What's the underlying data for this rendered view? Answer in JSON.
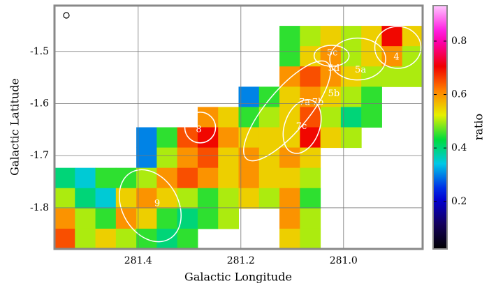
{
  "chart_data": {
    "type": "heatmap",
    "x_label": "Galactic Longitude",
    "y_label": "Galactic Latitude",
    "colorbar_label": "ratio",
    "xlim": [
      281.563,
      280.846
    ],
    "ylim": [
      -1.879,
      -1.412
    ],
    "xticks": [
      281.4,
      281.2,
      {
        "value": 281.0,
        "label": "281.0"
      }
    ],
    "yticks": [
      -1.5,
      -1.6,
      -1.7,
      -1.8
    ],
    "zlim": [
      0.022,
      0.933
    ],
    "zticks": [
      0.2,
      0.4,
      0.6,
      0.8
    ],
    "grid": true,
    "z": [
      [
        null,
        null,
        null,
        null,
        null,
        null,
        null,
        null,
        null,
        null,
        null,
        null,
        null,
        null,
        null,
        null,
        null,
        null
      ],
      [
        null,
        null,
        null,
        null,
        null,
        null,
        null,
        null,
        null,
        null,
        null,
        0.45,
        0.5,
        0.55,
        0.5,
        0.55,
        0.7,
        0.55
      ],
      [
        null,
        null,
        null,
        null,
        null,
        null,
        null,
        null,
        null,
        null,
        null,
        0.45,
        0.55,
        0.6,
        0.5,
        0.55,
        0.6,
        0.5
      ],
      [
        null,
        null,
        null,
        null,
        null,
        null,
        null,
        null,
        null,
        null,
        null,
        0.6,
        0.65,
        0.6,
        0.55,
        0.5,
        0.5,
        0.5
      ],
      [
        null,
        null,
        null,
        null,
        null,
        null,
        null,
        null,
        null,
        0.3,
        0.45,
        0.55,
        0.6,
        0.55,
        0.5,
        0.45,
        null,
        null
      ],
      [
        null,
        null,
        null,
        null,
        null,
        null,
        null,
        0.6,
        0.55,
        0.45,
        0.5,
        0.55,
        0.65,
        0.5,
        0.4,
        0.45,
        null,
        null
      ],
      [
        null,
        null,
        null,
        null,
        0.3,
        0.45,
        0.65,
        0.7,
        0.6,
        0.55,
        0.55,
        0.55,
        0.7,
        0.55,
        0.5,
        null,
        null,
        null
      ],
      [
        null,
        null,
        null,
        null,
        0.3,
        0.5,
        0.6,
        0.65,
        0.55,
        0.6,
        0.55,
        0.6,
        0.55,
        null,
        null,
        null,
        null,
        null
      ],
      [
        0.4,
        0.35,
        0.45,
        0.45,
        0.5,
        0.6,
        0.65,
        0.6,
        0.55,
        0.6,
        0.55,
        0.55,
        0.5,
        null,
        null,
        null,
        null,
        null
      ],
      [
        0.5,
        0.4,
        0.35,
        0.55,
        0.6,
        0.55,
        0.5,
        0.45,
        0.5,
        0.55,
        0.5,
        0.6,
        0.45,
        null,
        null,
        null,
        null,
        null
      ],
      [
        0.6,
        0.5,
        0.45,
        0.6,
        0.55,
        0.45,
        0.4,
        0.45,
        0.5,
        null,
        null,
        0.6,
        0.5,
        null,
        null,
        null,
        null,
        null
      ],
      [
        0.65,
        0.5,
        0.55,
        0.5,
        0.45,
        0.4,
        0.45,
        null,
        null,
        null,
        null,
        0.55,
        0.5,
        null,
        null,
        null,
        null,
        null
      ]
    ],
    "regions": [
      {
        "label": "4",
        "l": 280.897,
        "b": -1.511
      },
      {
        "label": "5c",
        "l": 281.022,
        "b": -1.503
      },
      {
        "label": "5d",
        "l": 281.019,
        "b": -1.533
      },
      {
        "label": "5a",
        "l": 280.967,
        "b": -1.536
      },
      {
        "label": "5b",
        "l": 281.019,
        "b": -1.581
      },
      {
        "label": "7a",
        "l": 281.076,
        "b": -1.598
      },
      {
        "label": "7b",
        "l": 281.05,
        "b": -1.598
      },
      {
        "label": "7c",
        "l": 281.082,
        "b": -1.644
      },
      {
        "label": "8",
        "l": 281.282,
        "b": -1.65
      },
      {
        "label": "9",
        "l": 281.363,
        "b": -1.792
      }
    ]
  }
}
